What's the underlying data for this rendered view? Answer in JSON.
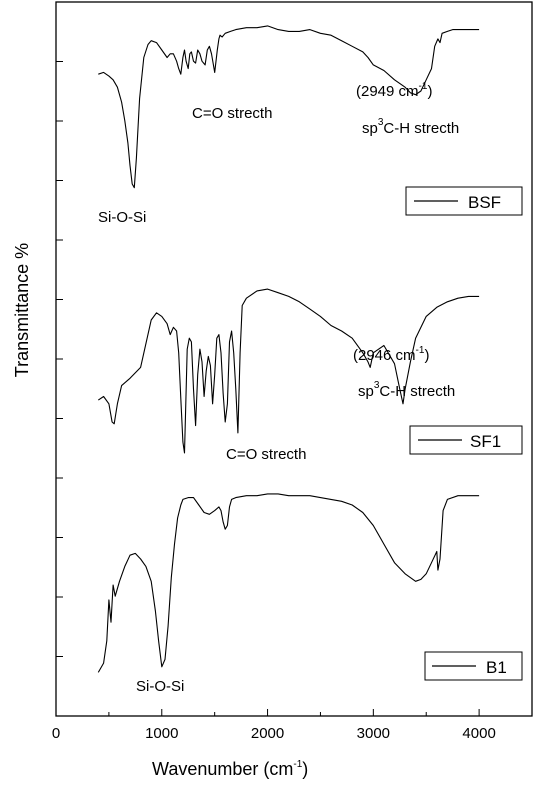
{
  "chart_data": {
    "type": "line",
    "xlabel": "Wavenumber (cm",
    "xlabel_sup": "-1",
    "xlabel_close": ")",
    "ylabel": "Transmittance %",
    "xlim": [
      0,
      4500
    ],
    "x_ticks": [
      0,
      1000,
      2000,
      3000,
      4000
    ],
    "x_tick_labels": [
      "0",
      "1000",
      "2000",
      "3000",
      "4000"
    ],
    "series": [
      {
        "name": "BSF",
        "x": [
          400,
          450,
          500,
          540,
          580,
          620,
          650,
          680,
          700,
          720,
          740,
          760,
          790,
          830,
          870,
          900,
          950,
          1000,
          1050,
          1080,
          1110,
          1140,
          1160,
          1180,
          1200,
          1215,
          1230,
          1250,
          1265,
          1280,
          1300,
          1320,
          1340,
          1360,
          1380,
          1410,
          1430,
          1450,
          1470,
          1500,
          1525,
          1540,
          1550,
          1570,
          1600,
          1650,
          1700,
          1800,
          1900,
          2000,
          2100,
          2200,
          2300,
          2400,
          2500,
          2600,
          2700,
          2800,
          2900,
          2950,
          3000,
          3100,
          3200,
          3300,
          3350,
          3400,
          3450,
          3500,
          3550,
          3580,
          3610,
          3630,
          3650,
          3700,
          3750,
          3800,
          3900,
          4000
        ],
        "y": [
          73,
          74,
          72,
          70,
          66,
          58,
          48,
          36,
          24,
          14,
          12,
          28,
          60,
          82,
          89,
          91,
          90,
          86,
          82,
          84,
          84,
          80,
          76,
          73,
          82,
          86,
          80,
          76,
          84,
          85,
          80,
          79,
          86,
          84,
          80,
          78,
          86,
          88,
          84,
          74,
          86,
          92,
          94,
          93,
          95,
          96,
          97,
          98,
          98,
          99,
          97,
          96,
          96,
          97,
          95,
          94,
          91,
          88,
          85,
          82,
          78,
          75,
          70,
          66,
          63,
          62,
          64,
          70,
          76,
          88,
          92,
          90,
          95,
          96,
          97,
          97,
          97,
          97
        ]
      },
      {
        "name": "SF1",
        "x": [
          400,
          450,
          500,
          530,
          550,
          580,
          620,
          700,
          800,
          900,
          950,
          1000,
          1050,
          1080,
          1110,
          1140,
          1160,
          1180,
          1200,
          1215,
          1225,
          1240,
          1260,
          1280,
          1300,
          1320,
          1340,
          1360,
          1380,
          1400,
          1420,
          1440,
          1460,
          1480,
          1500,
          1520,
          1540,
          1560,
          1580,
          1600,
          1620,
          1640,
          1660,
          1680,
          1700,
          1720,
          1740,
          1760,
          1800,
          1900,
          2000,
          2100,
          2200,
          2300,
          2400,
          2500,
          2600,
          2700,
          2800,
          2900,
          2950,
          2970,
          3000,
          3100,
          3200,
          3250,
          3280,
          3300,
          3350,
          3400,
          3500,
          3600,
          3700,
          3800,
          3900,
          4000
        ],
        "y": [
          34,
          36,
          32,
          22,
          21,
          32,
          42,
          46,
          52,
          78,
          82,
          80,
          76,
          70,
          74,
          72,
          60,
          35,
          11,
          5,
          28,
          62,
          68,
          66,
          40,
          20,
          48,
          62,
          55,
          36,
          50,
          58,
          53,
          32,
          48,
          68,
          70,
          60,
          38,
          22,
          32,
          66,
          72,
          60,
          40,
          16,
          60,
          86,
          90,
          94,
          95,
          93,
          91,
          88,
          84,
          80,
          75,
          72,
          68,
          60,
          55,
          52,
          60,
          64,
          54,
          40,
          32,
          40,
          55,
          68,
          80,
          85,
          88,
          90,
          91,
          91
        ]
      },
      {
        "name": "B1",
        "x": [
          400,
          450,
          480,
          500,
          520,
          540,
          560,
          600,
          650,
          700,
          750,
          800,
          850,
          900,
          940,
          970,
          1000,
          1030,
          1060,
          1090,
          1120,
          1150,
          1180,
          1200,
          1250,
          1300,
          1350,
          1400,
          1450,
          1500,
          1540,
          1560,
          1580,
          1600,
          1620,
          1640,
          1660,
          1700,
          1800,
          1900,
          2000,
          2100,
          2200,
          2300,
          2400,
          2500,
          2600,
          2700,
          2800,
          2900,
          3000,
          3100,
          3200,
          3300,
          3400,
          3450,
          3500,
          3550,
          3600,
          3610,
          3630,
          3660,
          3700,
          3800,
          3900,
          4000
        ],
        "y": [
          3,
          8,
          20,
          42,
          30,
          50,
          44,
          52,
          60,
          66,
          67,
          64,
          60,
          52,
          36,
          20,
          6,
          10,
          28,
          54,
          72,
          86,
          93,
          96,
          97,
          97,
          93,
          89,
          88,
          90,
          92,
          90,
          84,
          80,
          82,
          92,
          96,
          97,
          98,
          98,
          99,
          99,
          98,
          98,
          98,
          97,
          96,
          95,
          93,
          89,
          82,
          72,
          62,
          56,
          52,
          53,
          56,
          62,
          68,
          58,
          64,
          90,
          96,
          98,
          98,
          98
        ]
      }
    ],
    "annotations": [
      {
        "series": "BSF",
        "text": "C=O strecth"
      },
      {
        "series": "BSF",
        "text": "Si-O-Si"
      },
      {
        "series": "BSF",
        "text": "(2949 cm",
        "sup": "-1",
        "close": ")"
      },
      {
        "series": "BSF",
        "text": "sp",
        "sup": "3",
        "close": "C-H strecth"
      },
      {
        "series": "SF1",
        "text": "(2946 cm",
        "sup": "-1",
        "close": ")"
      },
      {
        "series": "SF1",
        "text": "sp",
        "sup": "3",
        "close": "C-H strecth"
      },
      {
        "series": "SF1",
        "text": "C=O strecth"
      },
      {
        "series": "B1",
        "text": "Si-O-Si"
      }
    ],
    "grid": false,
    "legend": "per-panel right"
  }
}
